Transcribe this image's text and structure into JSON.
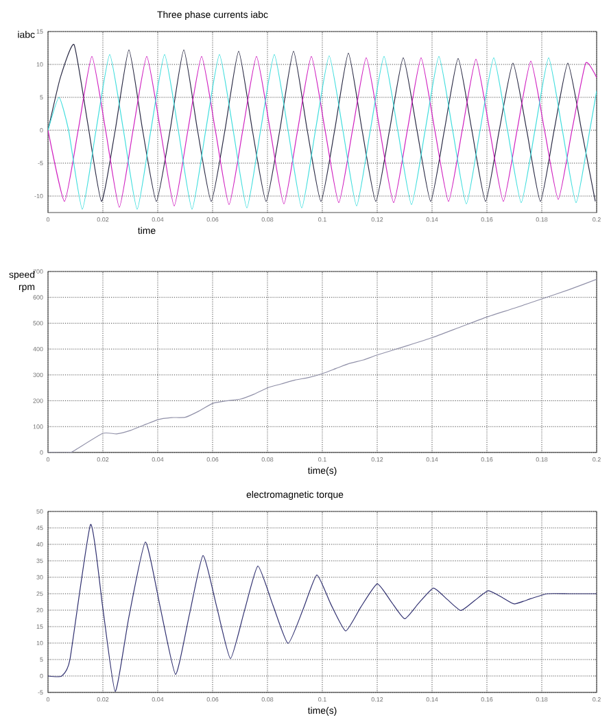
{
  "chart_data": [
    {
      "type": "line",
      "title": "Three phase currents iabc",
      "xlabel": "time",
      "ylabel": "iabc",
      "xlim": [
        0,
        0.2
      ],
      "ylim": [
        -12.5,
        15
      ],
      "xticks": [
        0,
        0.02,
        0.04,
        0.06,
        0.08,
        0.1,
        0.12,
        0.14,
        0.16,
        0.18,
        0.2
      ],
      "yticks": [
        -10,
        -5,
        0,
        5,
        10,
        15
      ],
      "grid": true,
      "series": [
        {
          "color": "#2a2a44",
          "x": [
            0,
            0.0045,
            0.0095,
            0.0145,
            0.0195,
            0.0245,
            0.0295,
            0.0345,
            0.0395,
            0.0445,
            0.0495,
            0.0545,
            0.0595,
            0.0645,
            0.0695,
            0.0745,
            0.0795,
            0.0845,
            0.0895,
            0.0945,
            0.0995,
            0.1045,
            0.1095,
            0.1145,
            0.1195,
            0.1245,
            0.1295,
            0.1345,
            0.1395,
            0.1445,
            0.1495,
            0.1545,
            0.1595,
            0.1645,
            0.1695,
            0.1745,
            0.1795,
            0.1845,
            0.1895,
            0.1945,
            0.1995
          ],
          "values": [
            0,
            8,
            13,
            1,
            -10.8,
            0,
            12.2,
            0,
            -10.8,
            0,
            12.2,
            0,
            -10.8,
            0,
            12,
            0,
            -10.8,
            0,
            12,
            0,
            -10.8,
            0,
            11.7,
            0,
            -10.8,
            0,
            11,
            0,
            -10.8,
            0,
            10.9,
            0,
            -10.8,
            0,
            10.2,
            0,
            -10.8,
            0,
            10.2,
            0,
            -10.8
          ]
        },
        {
          "color": "#d020c0",
          "x": [
            0,
            0.006,
            0.011,
            0.016,
            0.021,
            0.026,
            0.031,
            0.036,
            0.041,
            0.046,
            0.051,
            0.056,
            0.061,
            0.066,
            0.071,
            0.076,
            0.081,
            0.086,
            0.091,
            0.096,
            0.101,
            0.106,
            0.111,
            0.116,
            0.121,
            0.126,
            0.131,
            0.136,
            0.141,
            0.146,
            0.151,
            0.156,
            0.161,
            0.166,
            0.171,
            0.176,
            0.181,
            0.186,
            0.191,
            0.196,
            0.2
          ],
          "values": [
            0,
            -10.8,
            0,
            11.2,
            0,
            -11.7,
            0,
            11.2,
            0,
            -11.5,
            0,
            11.2,
            0,
            -11.3,
            0,
            11.2,
            0,
            -11.2,
            0,
            11.2,
            0,
            -11,
            0,
            11,
            0,
            -11,
            0,
            11,
            0,
            -10.8,
            0,
            10.8,
            0,
            -10.8,
            0,
            10.5,
            0,
            -10.5,
            0,
            10.2,
            8
          ]
        },
        {
          "color": "#40dede",
          "x": [
            0,
            0.004,
            0.0075,
            0.0125,
            0.0175,
            0.0225,
            0.0275,
            0.0325,
            0.0375,
            0.0425,
            0.0475,
            0.0525,
            0.0575,
            0.0625,
            0.0675,
            0.0725,
            0.0775,
            0.0825,
            0.0875,
            0.0925,
            0.0975,
            0.1025,
            0.1075,
            0.1125,
            0.1175,
            0.1225,
            0.1275,
            0.1325,
            0.1375,
            0.1425,
            0.1475,
            0.1525,
            0.1575,
            0.1625,
            0.1675,
            0.1725,
            0.1775,
            0.1825,
            0.1875,
            0.1925,
            0.1975,
            0.2
          ],
          "values": [
            0,
            5,
            0,
            -12,
            0,
            11.5,
            0,
            -12,
            0,
            11.5,
            0,
            -12,
            0,
            11.5,
            0,
            -11.8,
            0,
            11.5,
            0,
            -11.8,
            0,
            11.3,
            0,
            -11.5,
            0,
            11.2,
            0,
            -11.3,
            0,
            11.2,
            0,
            -11.2,
            0,
            11,
            0,
            -11,
            0,
            11,
            0,
            -11,
            0,
            6
          ]
        }
      ]
    },
    {
      "type": "line",
      "xlabel": "time(s)",
      "ylabel": "speed rpm",
      "xlim": [
        0,
        0.2
      ],
      "ylim": [
        0,
        700
      ],
      "xticks": [
        0,
        0.02,
        0.04,
        0.06,
        0.08,
        0.1,
        0.12,
        0.14,
        0.16,
        0.18,
        0.2
      ],
      "yticks": [
        0,
        100,
        200,
        300,
        400,
        500,
        600,
        700
      ],
      "grid": true,
      "series": [
        {
          "color": "#9090a8",
          "x": [
            0,
            0.008,
            0.01,
            0.02,
            0.025,
            0.03,
            0.04,
            0.045,
            0.05,
            0.055,
            0.06,
            0.065,
            0.07,
            0.075,
            0.08,
            0.085,
            0.09,
            0.095,
            0.1,
            0.105,
            0.11,
            0.115,
            0.12,
            0.13,
            0.14,
            0.15,
            0.16,
            0.17,
            0.18,
            0.19,
            0.2
          ],
          "values": [
            0,
            0,
            10,
            74,
            72,
            85,
            127,
            135,
            136,
            160,
            190,
            200,
            206,
            225,
            250,
            265,
            280,
            290,
            305,
            325,
            345,
            358,
            377,
            410,
            444,
            484,
            524,
            558,
            594,
            630,
            670
          ]
        }
      ]
    },
    {
      "type": "line",
      "title": "electromagnetic torque",
      "xlabel": "time(s)",
      "xlim": [
        0,
        0.2
      ],
      "ylim": [
        -5,
        50
      ],
      "xticks": [
        0,
        0.02,
        0.04,
        0.06,
        0.08,
        0.1,
        0.12,
        0.14,
        0.16,
        0.18,
        0.2
      ],
      "yticks": [
        -5,
        0,
        5,
        10,
        15,
        20,
        25,
        30,
        35,
        40,
        45,
        50
      ],
      "grid": true,
      "series": [
        {
          "color": "#303070",
          "x": [
            0,
            0.005,
            0.008,
            0.0155,
            0.02,
            0.0245,
            0.0295,
            0.0355,
            0.041,
            0.0465,
            0.0515,
            0.0565,
            0.0615,
            0.0665,
            0.0715,
            0.0765,
            0.082,
            0.0875,
            0.093,
            0.098,
            0.103,
            0.1085,
            0.114,
            0.12,
            0.125,
            0.13,
            0.135,
            0.1405,
            0.1455,
            0.1505,
            0.1555,
            0.1605,
            0.1655,
            0.17,
            0.176,
            0.182,
            0.19,
            0.2
          ],
          "values": [
            0,
            0,
            5,
            46,
            20.5,
            -4.7,
            18,
            40.7,
            20.5,
            0.5,
            18.5,
            36.6,
            21,
            5.3,
            19.5,
            33.4,
            21.5,
            9.9,
            20.3,
            30.7,
            22,
            13.7,
            20.9,
            28,
            22.7,
            17.4,
            22,
            26.7,
            23.3,
            19.9,
            22.9,
            25.9,
            23.9,
            21.9,
            23.5,
            25,
            25,
            25
          ]
        }
      ]
    }
  ]
}
